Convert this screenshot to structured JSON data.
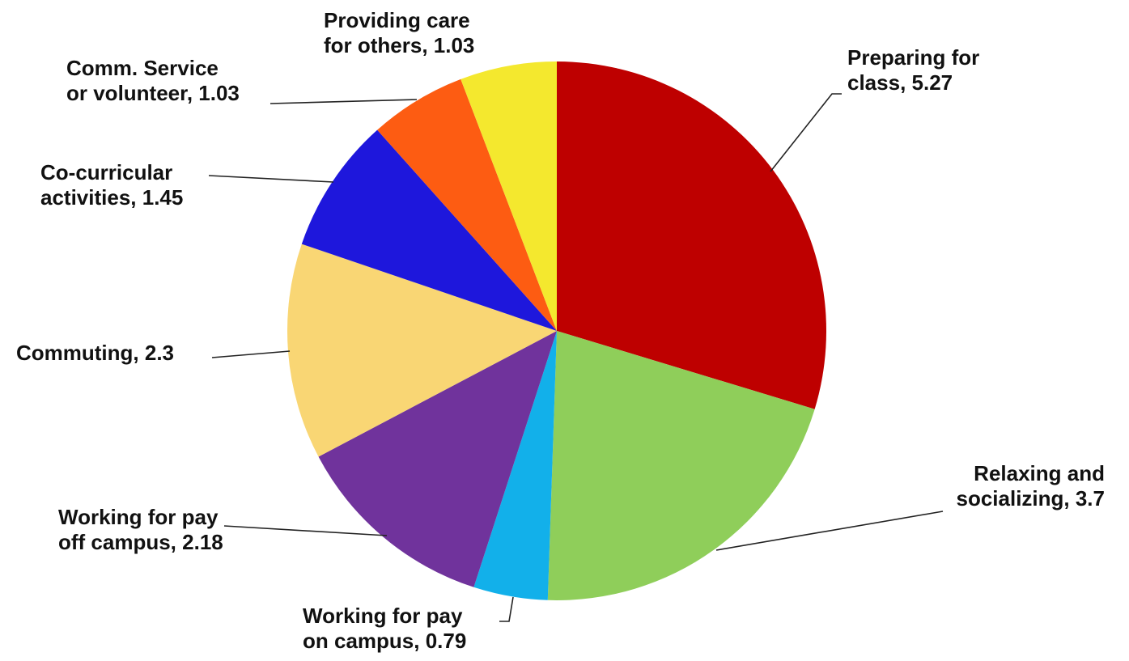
{
  "chart_data": {
    "type": "pie",
    "title": "",
    "start_angle_deg": 0,
    "direction": "clockwise",
    "slices": [
      {
        "label_lines": [
          "Preparing for",
          "class, 5.27"
        ],
        "label": "Preparing for class",
        "value": 5.27,
        "color": "#BE0000"
      },
      {
        "label_lines": [
          "Relaxing and",
          "socializing, 3.7"
        ],
        "label": "Relaxing and socializing",
        "value": 3.7,
        "color": "#8FCE5A"
      },
      {
        "label_lines": [
          "Working for pay",
          "on campus, 0.79"
        ],
        "label": "Working for pay on campus",
        "value": 0.79,
        "color": "#12B0EA"
      },
      {
        "label_lines": [
          "Working for pay",
          "off campus, 2.18"
        ],
        "label": "Working for pay off campus",
        "value": 2.18,
        "color": "#70339C"
      },
      {
        "label_lines": [
          "Commuting, 2.3"
        ],
        "label": "Commuting",
        "value": 2.3,
        "color": "#F9D674"
      },
      {
        "label_lines": [
          "Co-curricular",
          "activities, 1.45"
        ],
        "label": "Co-curricular activities",
        "value": 1.45,
        "color": "#1E17DC"
      },
      {
        "label_lines": [
          "Comm. Service",
          "or volunteer, 1.03"
        ],
        "label": "Comm. Service or volunteer",
        "value": 1.03,
        "color": "#FD5C12"
      },
      {
        "label_lines": [
          "Providing care",
          "for others, 1.03"
        ],
        "label": "Providing care for others",
        "value": 1.03,
        "color": "#F4E82E"
      }
    ]
  }
}
